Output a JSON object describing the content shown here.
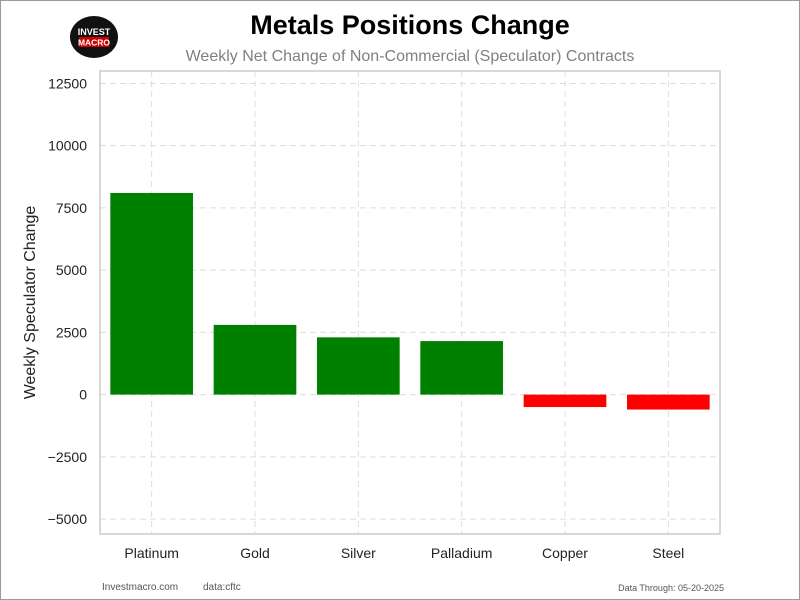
{
  "logo": {
    "line1": "INVEST",
    "line2": "MACRO"
  },
  "header": {
    "title": "Metals Positions Change",
    "subtitle": "Weekly Net Change of Non-Commercial (Speculator) Contracts"
  },
  "footer": {
    "site": "Investmacro.com",
    "source": "data:cftc",
    "data_through": "Data Through: 05-20-2025"
  },
  "colors": {
    "positive": "#008000",
    "negative": "#ff0000",
    "grid": "#dddddd",
    "axis": "#cccccc"
  },
  "chart_data": {
    "type": "bar",
    "title": "Metals Positions Change",
    "subtitle": "Weekly Net Change of Non-Commercial (Speculator) Contracts",
    "xlabel": "",
    "ylabel": "Weekly Speculator Change",
    "categories": [
      "Platinum",
      "Gold",
      "Silver",
      "Palladium",
      "Copper",
      "Steel"
    ],
    "values": [
      8100,
      2800,
      2300,
      2150,
      -500,
      -600
    ],
    "ylim": [
      -5600,
      13000
    ],
    "yticks": [
      -5000,
      -2500,
      0,
      2500,
      5000,
      7500,
      10000,
      12500
    ],
    "ytick_labels": [
      "−5000",
      "−2500",
      "0",
      "2500",
      "5000",
      "7500",
      "10000",
      "12500"
    ],
    "grid": true,
    "legend": "none"
  }
}
